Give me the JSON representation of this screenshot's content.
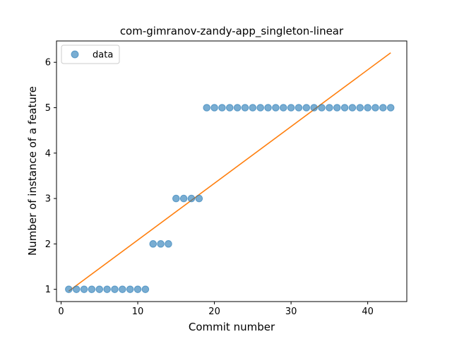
{
  "chart_data": {
    "type": "scatter",
    "title": "com-gimranov-zandy-app_singleton-linear",
    "xlabel": "Commit number",
    "ylabel": "Number of instance of a feature",
    "xlim": [
      -0.6,
      45.1
    ],
    "ylim": [
      0.73,
      6.47
    ],
    "xticks": [
      0,
      10,
      20,
      30,
      40
    ],
    "yticks": [
      1,
      2,
      3,
      4,
      5,
      6
    ],
    "grid": false,
    "legend": {
      "entries": [
        "data"
      ],
      "placement": "top-left"
    },
    "series": [
      {
        "name": "data",
        "kind": "scatter",
        "color": "#1f77b4",
        "x": [
          1,
          2,
          3,
          4,
          5,
          6,
          7,
          8,
          9,
          10,
          11,
          12,
          13,
          14,
          15,
          16,
          17,
          18,
          19,
          20,
          21,
          22,
          23,
          24,
          25,
          26,
          27,
          28,
          29,
          30,
          31,
          32,
          33,
          34,
          35,
          36,
          37,
          38,
          39,
          40,
          41,
          42,
          43
        ],
        "y": [
          1,
          1,
          1,
          1,
          1,
          1,
          1,
          1,
          1,
          1,
          1,
          2,
          2,
          2,
          3,
          3,
          3,
          3,
          5,
          5,
          5,
          5,
          5,
          5,
          5,
          5,
          5,
          5,
          5,
          5,
          5,
          5,
          5,
          5,
          5,
          5,
          5,
          5,
          5,
          5,
          5,
          5,
          5
        ]
      },
      {
        "kind": "line",
        "color": "#ff7f0e",
        "x": [
          1,
          43
        ],
        "y": [
          0.96,
          6.21
        ]
      }
    ]
  }
}
